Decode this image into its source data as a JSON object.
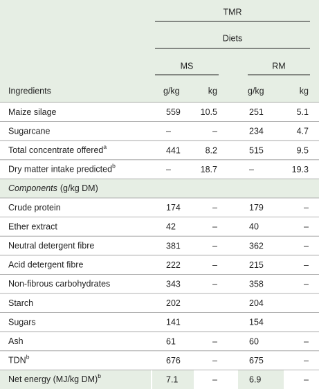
{
  "header": {
    "tmr": "TMR",
    "diets": "Diets",
    "groups": [
      "MS",
      "RM"
    ],
    "columns": [
      "Ingredients",
      "g/kg",
      "kg",
      "g/kg",
      "kg"
    ]
  },
  "rows": [
    {
      "label": "Maize silage",
      "cells": [
        559,
        10.5,
        251,
        5.1
      ]
    },
    {
      "label": "Sugarcane",
      "cells": [
        "–",
        "–",
        234,
        4.7
      ]
    },
    {
      "label": "Total concentrate offered",
      "sup": "a",
      "cells": [
        441,
        8.2,
        515,
        9.5
      ]
    },
    {
      "label": "Dry matter intake predicted",
      "sup": "b",
      "cells": [
        "–",
        18.7,
        "–",
        19.3
      ]
    },
    {
      "label": "Components",
      "note": "(g/kg DM)",
      "section": true
    },
    {
      "label": "Crude protein",
      "cells": [
        174,
        "–",
        179,
        "–"
      ]
    },
    {
      "label": "Ether extract",
      "cells": [
        42,
        "–",
        40,
        "–"
      ]
    },
    {
      "label": "Neutral detergent fibre",
      "cells": [
        381,
        "–",
        362,
        "–"
      ]
    },
    {
      "label": "Acid detergent fibre",
      "cells": [
        222,
        "–",
        215,
        "–"
      ]
    },
    {
      "label": "Non-fibrous carbohydrates",
      "cells": [
        343,
        "–",
        358,
        "–"
      ]
    },
    {
      "label": "Starch",
      "cells": [
        202,
        "",
        204,
        ""
      ]
    },
    {
      "label": "Sugars",
      "cells": [
        141,
        "",
        154,
        ""
      ]
    },
    {
      "label": "Ash",
      "cells": [
        61,
        "–",
        60,
        "–"
      ]
    },
    {
      "label": "TDN",
      "sup": "b",
      "cells": [
        676,
        "–",
        675,
        "–"
      ]
    },
    {
      "label": "Net energy (MJ/kg DM)",
      "sup": "b",
      "cells": [
        7.1,
        "–",
        6.9,
        "–"
      ],
      "shaded": true
    }
  ]
}
